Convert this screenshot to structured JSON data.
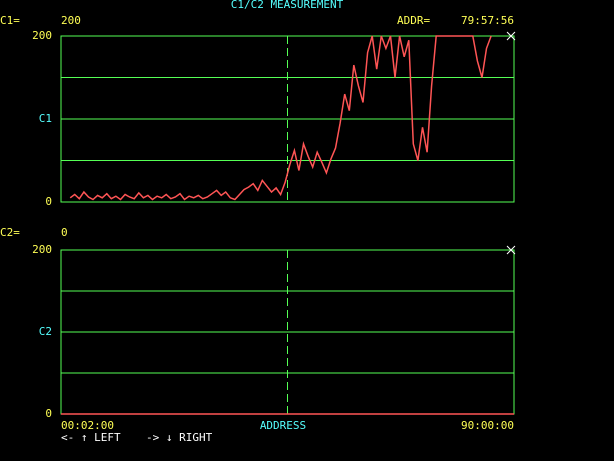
{
  "title": "C1/C2 MEASUREMENT",
  "footer": {
    "left": "<- ↑ LEFT",
    "right": "-> ↓ RIGHT"
  },
  "chart_data": [
    {
      "type": "line",
      "readout_label": "C1=",
      "readout": "200",
      "addr_label": "ADDR=",
      "addr": "79:57:56",
      "color": "#ff5555",
      "ylim": [
        0,
        200
      ],
      "yticks": [
        0,
        {
          "value": 100,
          "label": "C1"
        },
        200
      ],
      "ygrid": [
        50,
        100,
        150
      ],
      "values": [
        null,
        null,
        5,
        9,
        4,
        12,
        6,
        3,
        8,
        5,
        10,
        4,
        7,
        3,
        9,
        6,
        4,
        11,
        5,
        8,
        3,
        7,
        5,
        9,
        4,
        6,
        10,
        3,
        7,
        5,
        8,
        4,
        6,
        10,
        14,
        8,
        12,
        5,
        3,
        9,
        15,
        18,
        22,
        14,
        26,
        19,
        12,
        17,
        9,
        24,
        45,
        62,
        38,
        70,
        55,
        42,
        60,
        48,
        35,
        52,
        65,
        95,
        130,
        110,
        165,
        140,
        120,
        180,
        200,
        160,
        200,
        185,
        200,
        150,
        200,
        175,
        195,
        70,
        50,
        90,
        60,
        140,
        200,
        200,
        200,
        200,
        200,
        200,
        200,
        200,
        200,
        170,
        150,
        185,
        200,
        null,
        null,
        null,
        null,
        null
      ]
    },
    {
      "type": "line",
      "readout_label": "C2=",
      "readout": "0",
      "color": "#ff5555",
      "ylim": [
        0,
        200
      ],
      "yticks": [
        0,
        {
          "value": 100,
          "label": "C2"
        },
        200
      ],
      "ygrid": [
        50,
        100,
        150
      ],
      "values": [
        0,
        0
      ],
      "x_start": "00:02:00",
      "xlabel": "ADDRESS",
      "x_end": "90:00:00"
    }
  ]
}
